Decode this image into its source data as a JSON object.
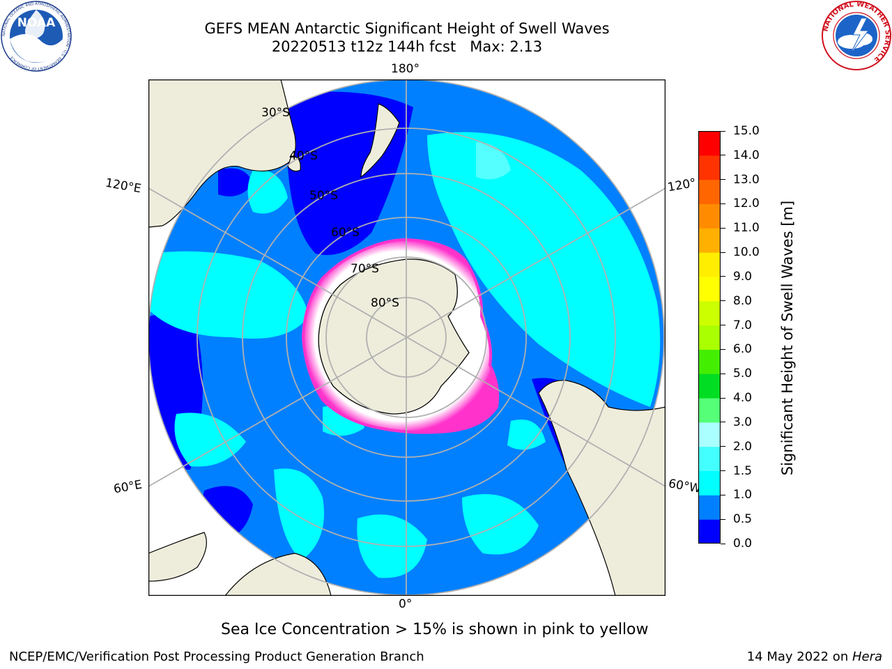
{
  "header": {
    "title_line1": "GEFS MEAN Antarctic Significant Height of Swell Waves",
    "title_line2": "20220513 t12z 144h fcst   Max: 2.13"
  },
  "map": {
    "projection": "south-polar-stereographic",
    "lon_labels": {
      "top": "180°",
      "bottom": "0°",
      "left_upper": "120°E",
      "left_lower": "60°E",
      "right_upper": "120°",
      "right_lower": "60°W"
    },
    "lat_labels": [
      "30°S",
      "40°S",
      "50°S",
      "60°S",
      "70°S",
      "80°S"
    ],
    "colors": {
      "land": "#eeeddc",
      "ice": "#ffffff",
      "ocean_low": "#0000ff",
      "ocean_mid": "#0080ff",
      "ocean_high": "#00ffff",
      "ice_edge": "#ff33cc"
    }
  },
  "colorbar": {
    "title": "Significant Height of Swell Waves [m]",
    "ticks": [
      "15.0",
      "14.0",
      "13.0",
      "12.0",
      "11.0",
      "10.0",
      "9.0",
      "8.0",
      "7.0",
      "6.0",
      "5.0",
      "4.0",
      "3.0",
      "2.0",
      "1.5",
      "1.0",
      "0.5",
      "0.0"
    ],
    "colors_bottom_to_top": [
      "#0000ff",
      "#0080ff",
      "#00ffff",
      "#44ffff",
      "#aaffff",
      "#55ff77",
      "#00dd22",
      "#44ee00",
      "#aaff00",
      "#ccff00",
      "#ffff00",
      "#ffee00",
      "#ffb000",
      "#ff8c00",
      "#ff6600",
      "#ff3300",
      "#ff0000"
    ]
  },
  "note": "Sea Ice Concentration > 15% is shown in pink to yellow",
  "footer": {
    "left": "NCEP/EMC/Verification Post Processing Product Generation Branch",
    "right_prefix": "14 May 2022 on ",
    "right_italic": "Hera"
  },
  "logos": {
    "noaa_text": "NOAA",
    "noaa_ring": "NATIONAL OCEANIC AND ATMOSPHERIC ADMINISTRATION · U.S. DEPARTMENT OF COMMERCE",
    "nws_ring": "NATIONAL WEATHER SERVICE"
  }
}
